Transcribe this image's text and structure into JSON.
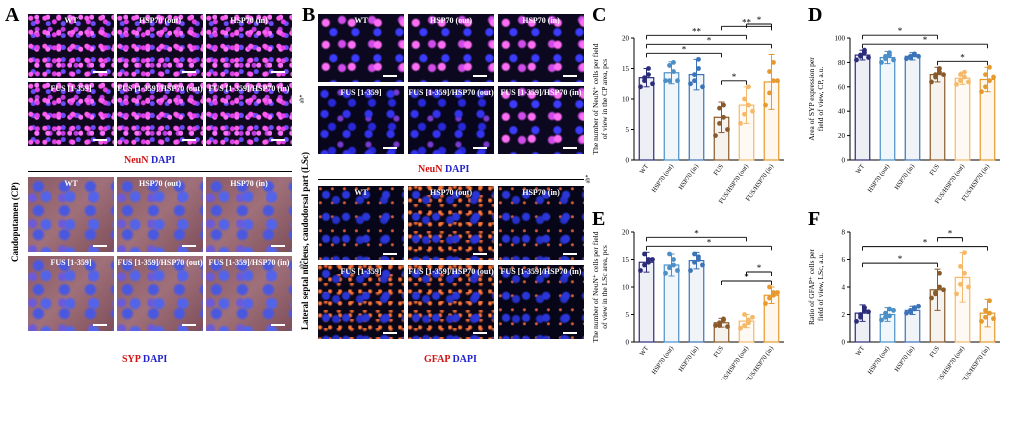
{
  "panel_letters": {
    "A": "A",
    "B": "B",
    "C": "C",
    "D": "D",
    "E": "E",
    "F": "F"
  },
  "labels": {
    "wt": "WT",
    "hsp_out": "HSP70 (out)",
    "hsp_in": "HSP70 (in)",
    "fus": "FUS [1-359]",
    "fus_hsp_out": "FUS [1-359]/HSP70 (out)",
    "fus_hsp_in": "FUS [1-359]/HSP70 (in)"
  },
  "stains": {
    "neun": "NeuN",
    "syp": "SYP",
    "gfap": "GFAP",
    "dapi": "DAPI",
    "red": "#d21414",
    "blue": "#2222cc"
  },
  "region_labels": {
    "cp": "Caudoputamen (CP)",
    "lsc": "Lateral septal nucleus, caudodorsal part (LSc)"
  },
  "side_marks": {
    "mark1": "ab*",
    "mark2": "ab*",
    "mark3": "ab*"
  },
  "chart_data": [
    {
      "panel": "C",
      "type": "bar",
      "ylabel": "The number of NeuN⁺ cells per field of view in the CP area, pcs",
      "ylim": [
        0,
        20
      ],
      "yticks": [
        0,
        5,
        10,
        15,
        20
      ],
      "categories": [
        "WT",
        "HSP70 (out)",
        "HSP70 (in)",
        "FUS",
        "FUS/HSP70 (out)",
        "FUS/HSP70 (in)"
      ],
      "values": [
        13.5,
        14.3,
        14.0,
        7.0,
        9.0,
        12.8
      ],
      "errors": [
        1.5,
        1.8,
        2.5,
        2.5,
        3.0,
        4.5
      ],
      "points": [
        [
          12,
          13,
          14,
          13.5,
          15,
          12.5
        ],
        [
          13,
          15.5,
          14.5,
          13,
          16,
          13
        ],
        [
          12.5,
          14,
          15,
          13,
          16.5,
          12
        ],
        [
          4,
          6,
          7,
          8.5,
          9,
          5
        ],
        [
          6,
          7.5,
          9,
          10,
          12,
          8
        ],
        [
          9,
          11,
          13,
          14.5,
          16,
          13
        ]
      ],
      "colors": [
        "#2b2d7a",
        "#4a8fc7",
        "#3b73b8",
        "#8a5a2b",
        "#f4b96a",
        "#e69a2e"
      ],
      "sig": [
        [
          "WT",
          "FUS",
          "*"
        ],
        [
          "WT",
          "FUS/HSP70 (in)",
          "*"
        ],
        [
          "WT",
          "FUS/HSP70 (out)",
          "**"
        ],
        [
          "FUS",
          "FUS/HSP70 (in)",
          "**"
        ],
        [
          "FUS/HSP70 (out)",
          "FUS/HSP70 (in)",
          "*"
        ],
        [
          "FUS",
          "FUS/HSP70 (out)",
          "*"
        ]
      ]
    },
    {
      "panel": "D",
      "type": "bar",
      "ylabel": "Area of SYP expression per field of view, CP, a.u.",
      "ylim": [
        0,
        100
      ],
      "yticks": [
        0,
        20,
        40,
        60,
        80,
        100
      ],
      "categories": [
        "WT",
        "HSP70 (out)",
        "HSP70 (in)",
        "FUS",
        "FUS/HSP70 (out)",
        "FUS/HSP70 (in)"
      ],
      "values": [
        86,
        84,
        85,
        70,
        67,
        66
      ],
      "errors": [
        4,
        5,
        3,
        6,
        5,
        10
      ],
      "points": [
        [
          82,
          85,
          88,
          86,
          90,
          84
        ],
        [
          80,
          83,
          86,
          85,
          88,
          82
        ],
        [
          83,
          85,
          86,
          84,
          87,
          85
        ],
        [
          64,
          68,
          72,
          70,
          75,
          70
        ],
        [
          62,
          65,
          68,
          70,
          72,
          64
        ],
        [
          56,
          60,
          65,
          70,
          76,
          68
        ]
      ],
      "colors": [
        "#2b2d7a",
        "#4a8fc7",
        "#3b73b8",
        "#8a5a2b",
        "#f4b96a",
        "#e69a2e"
      ],
      "sig": [
        [
          "WT",
          "FUS/HSP70 (in)",
          "*"
        ],
        [
          "WT",
          "FUS",
          "*"
        ],
        [
          "FUS",
          "FUS/HSP70 (in)",
          "*"
        ]
      ]
    },
    {
      "panel": "E",
      "type": "bar",
      "ylabel": "The number of NeuN⁺ cells per field of view in the LSc area, pcs",
      "ylim": [
        0,
        20
      ],
      "yticks": [
        0,
        5,
        10,
        15,
        20
      ],
      "categories": [
        "WT",
        "HSP70 (out)",
        "HSP70 (in)",
        "FUS",
        "FUS/HSP70 (out)",
        "FUS/HSP70 (in)"
      ],
      "values": [
        14.5,
        14.0,
        14.8,
        3.5,
        3.8,
        8.5
      ],
      "errors": [
        1.8,
        2.0,
        1.5,
        0.8,
        1.2,
        1.5
      ],
      "points": [
        [
          13,
          14,
          15,
          16,
          14.5,
          15
        ],
        [
          12.5,
          13.5,
          15,
          16,
          14,
          13
        ],
        [
          13,
          14.5,
          15.5,
          16,
          15,
          14
        ],
        [
          3,
          3.5,
          4,
          3,
          4.2,
          2.8
        ],
        [
          2.5,
          3,
          4,
          5,
          3.5,
          4.5
        ],
        [
          7,
          8,
          9,
          10,
          8.5,
          9
        ]
      ],
      "colors": [
        "#2b2d7a",
        "#4a8fc7",
        "#3b73b8",
        "#8a5a2b",
        "#f4b96a",
        "#e69a2e"
      ],
      "sig": [
        [
          "WT",
          "FUS/HSP70 (in)",
          "*"
        ],
        [
          "WT",
          "FUS/HSP70 (out)",
          "*"
        ],
        [
          "FUS",
          "FUS/HSP70 (in)",
          "*"
        ],
        [
          "FUS/HSP70 (out)",
          "FUS/HSP70 (in)",
          "*"
        ]
      ]
    },
    {
      "panel": "F",
      "type": "bar",
      "ylabel": "Ratio of GFAP⁺ cells per field of view, LSc, a.u.",
      "ylim": [
        0,
        8
      ],
      "yticks": [
        0,
        2,
        4,
        6,
        8
      ],
      "categories": [
        "WT",
        "HSP70 (out)",
        "HSP70 (in)",
        "FUS",
        "FUS/HSP70 (out)",
        "FUS/HSP70 (in)"
      ],
      "values": [
        2.1,
        2.0,
        2.3,
        3.8,
        4.7,
        2.1
      ],
      "errors": [
        0.6,
        0.5,
        0.3,
        1.5,
        1.8,
        1.0
      ],
      "points": [
        [
          1.5,
          2,
          2.3,
          1.8,
          2.5,
          2.2
        ],
        [
          1.6,
          1.8,
          2.4,
          2.1,
          1.9,
          2.3
        ],
        [
          2.1,
          2.3,
          2.5,
          2.2,
          2.4,
          2.6
        ],
        [
          3.2,
          3.6,
          4,
          3.5,
          5,
          3.8
        ],
        [
          3.5,
          4.2,
          5,
          5.5,
          6.5,
          4
        ],
        [
          1.5,
          1.8,
          2.1,
          2.3,
          3,
          1.7
        ]
      ],
      "colors": [
        "#2b2d7a",
        "#4a8fc7",
        "#3b73b8",
        "#8a5a2b",
        "#f4b96a",
        "#e69a2e"
      ],
      "sig": [
        [
          "WT",
          "FUS/HSP70 (in)",
          "*"
        ],
        [
          "WT",
          "FUS",
          "*"
        ],
        [
          "FUS",
          "FUS/HSP70 (out)",
          "*"
        ]
      ]
    }
  ]
}
